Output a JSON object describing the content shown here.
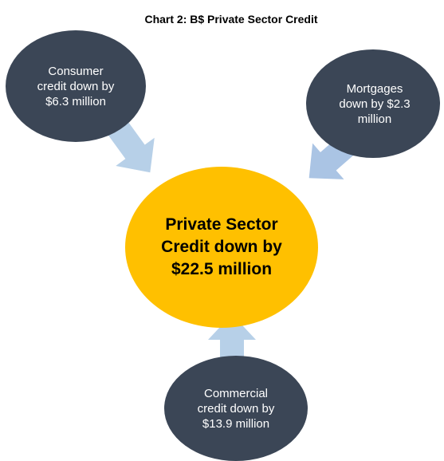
{
  "title": "Chart 2: B$ Private Sector Credit",
  "nodes": [
    {
      "label": "Private Sector Credit down by $22.5 million"
    },
    {
      "label": "Consumer credit down by $6.3 million"
    },
    {
      "label": "Mortgages down by $2.3 million"
    },
    {
      "label": "Commercial credit down by $13.9 million"
    }
  ]
}
